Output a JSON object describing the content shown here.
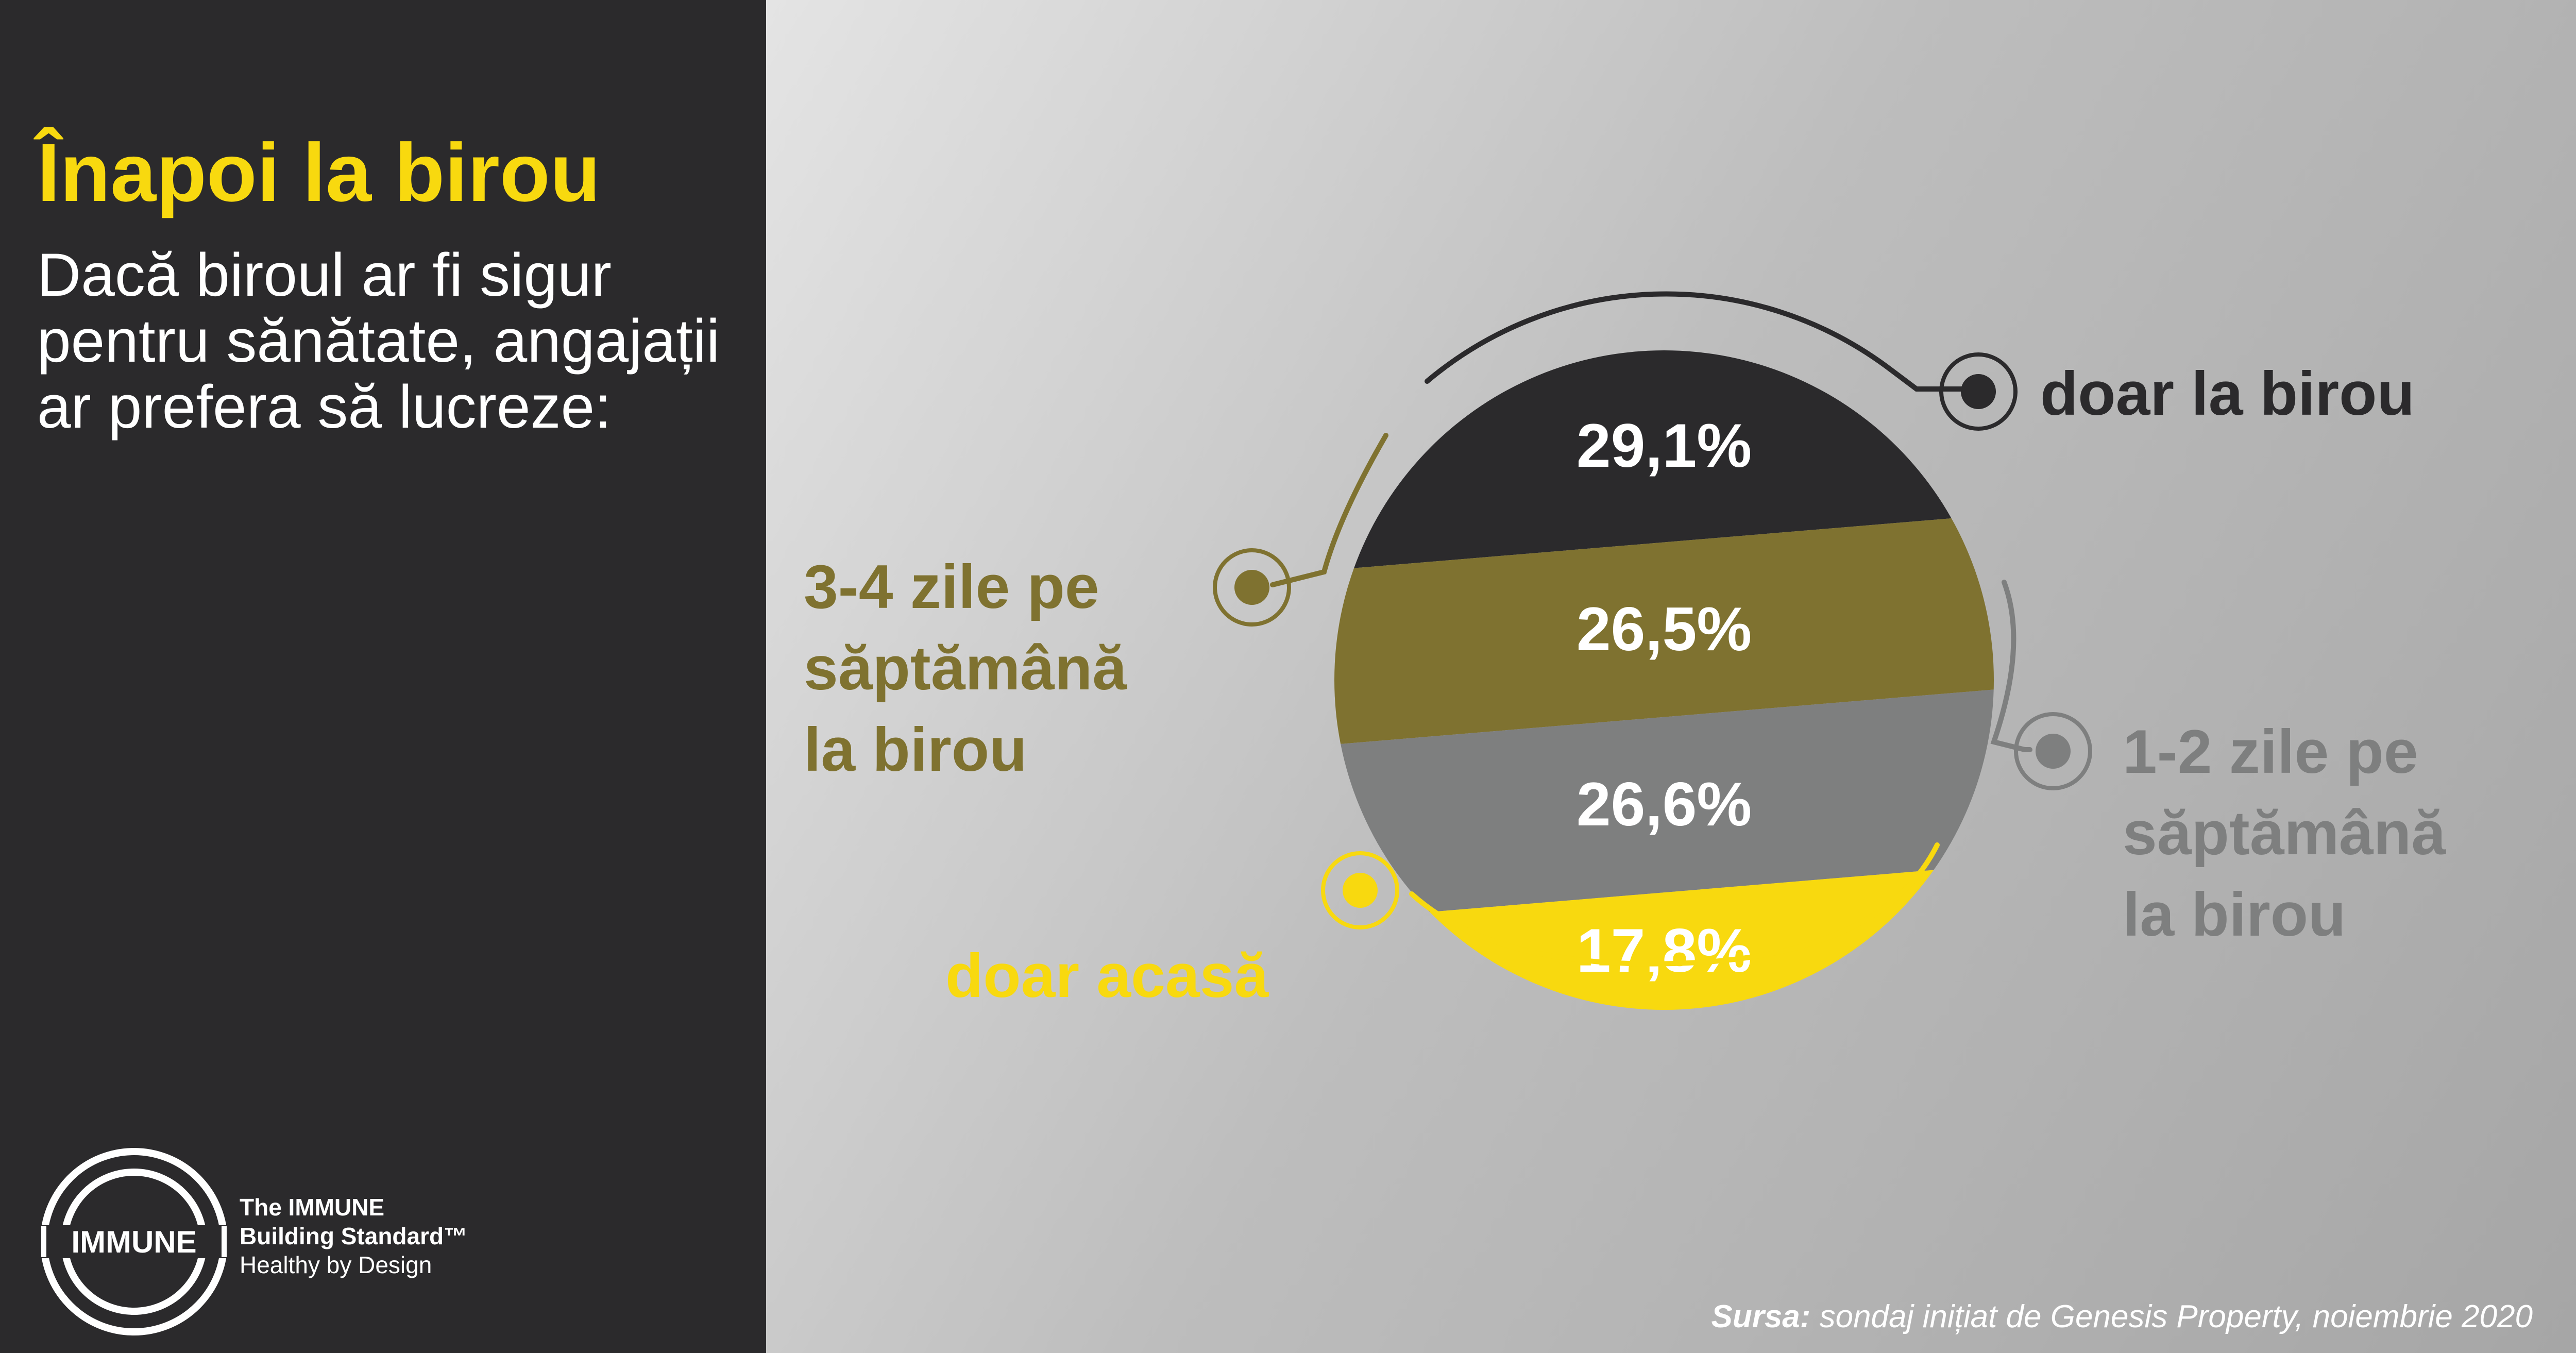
{
  "header": {
    "title": "Înapoi la birou",
    "subtitle": "Dacă biroul ar fi sigur pentru sănătate, angajații ar prefera să lucreze:"
  },
  "logo": {
    "badge": "IMMUNE",
    "line1": "The IMMUNE",
    "line2": "Building Standard™",
    "line3": "Healthy by Design"
  },
  "source": {
    "label": "Sursa:",
    "text": "sondaj inițiat de Genesis Property, noiembrie 2020"
  },
  "colors": {
    "dark": "#2b2a2c",
    "olive": "#7f7230",
    "gray": "#7e7f7f",
    "yellow": "#f8d90f",
    "white": "#ffffff"
  },
  "chart_data": {
    "type": "pie",
    "title": "",
    "categories": [
      "doar la birou",
      "3-4 zile pe săptămână la birou",
      "1-2 zile pe săptămână la birou",
      "doar acasă"
    ],
    "values": [
      29.1,
      26.5,
      26.6,
      17.8
    ],
    "value_labels": [
      "29,1%",
      "26,5%",
      "26,6%",
      "17,8%"
    ],
    "series_colors": [
      "#2b2a2c",
      "#7f7230",
      "#7e7f7f",
      "#f8d90f"
    ],
    "legend_labels": [
      [
        "doar la birou"
      ],
      [
        "3-4 zile pe",
        "săptămână",
        "la birou"
      ],
      [
        "1-2 zile pe",
        "săptămână",
        "la birou"
      ],
      [
        "doar acasă"
      ]
    ]
  }
}
